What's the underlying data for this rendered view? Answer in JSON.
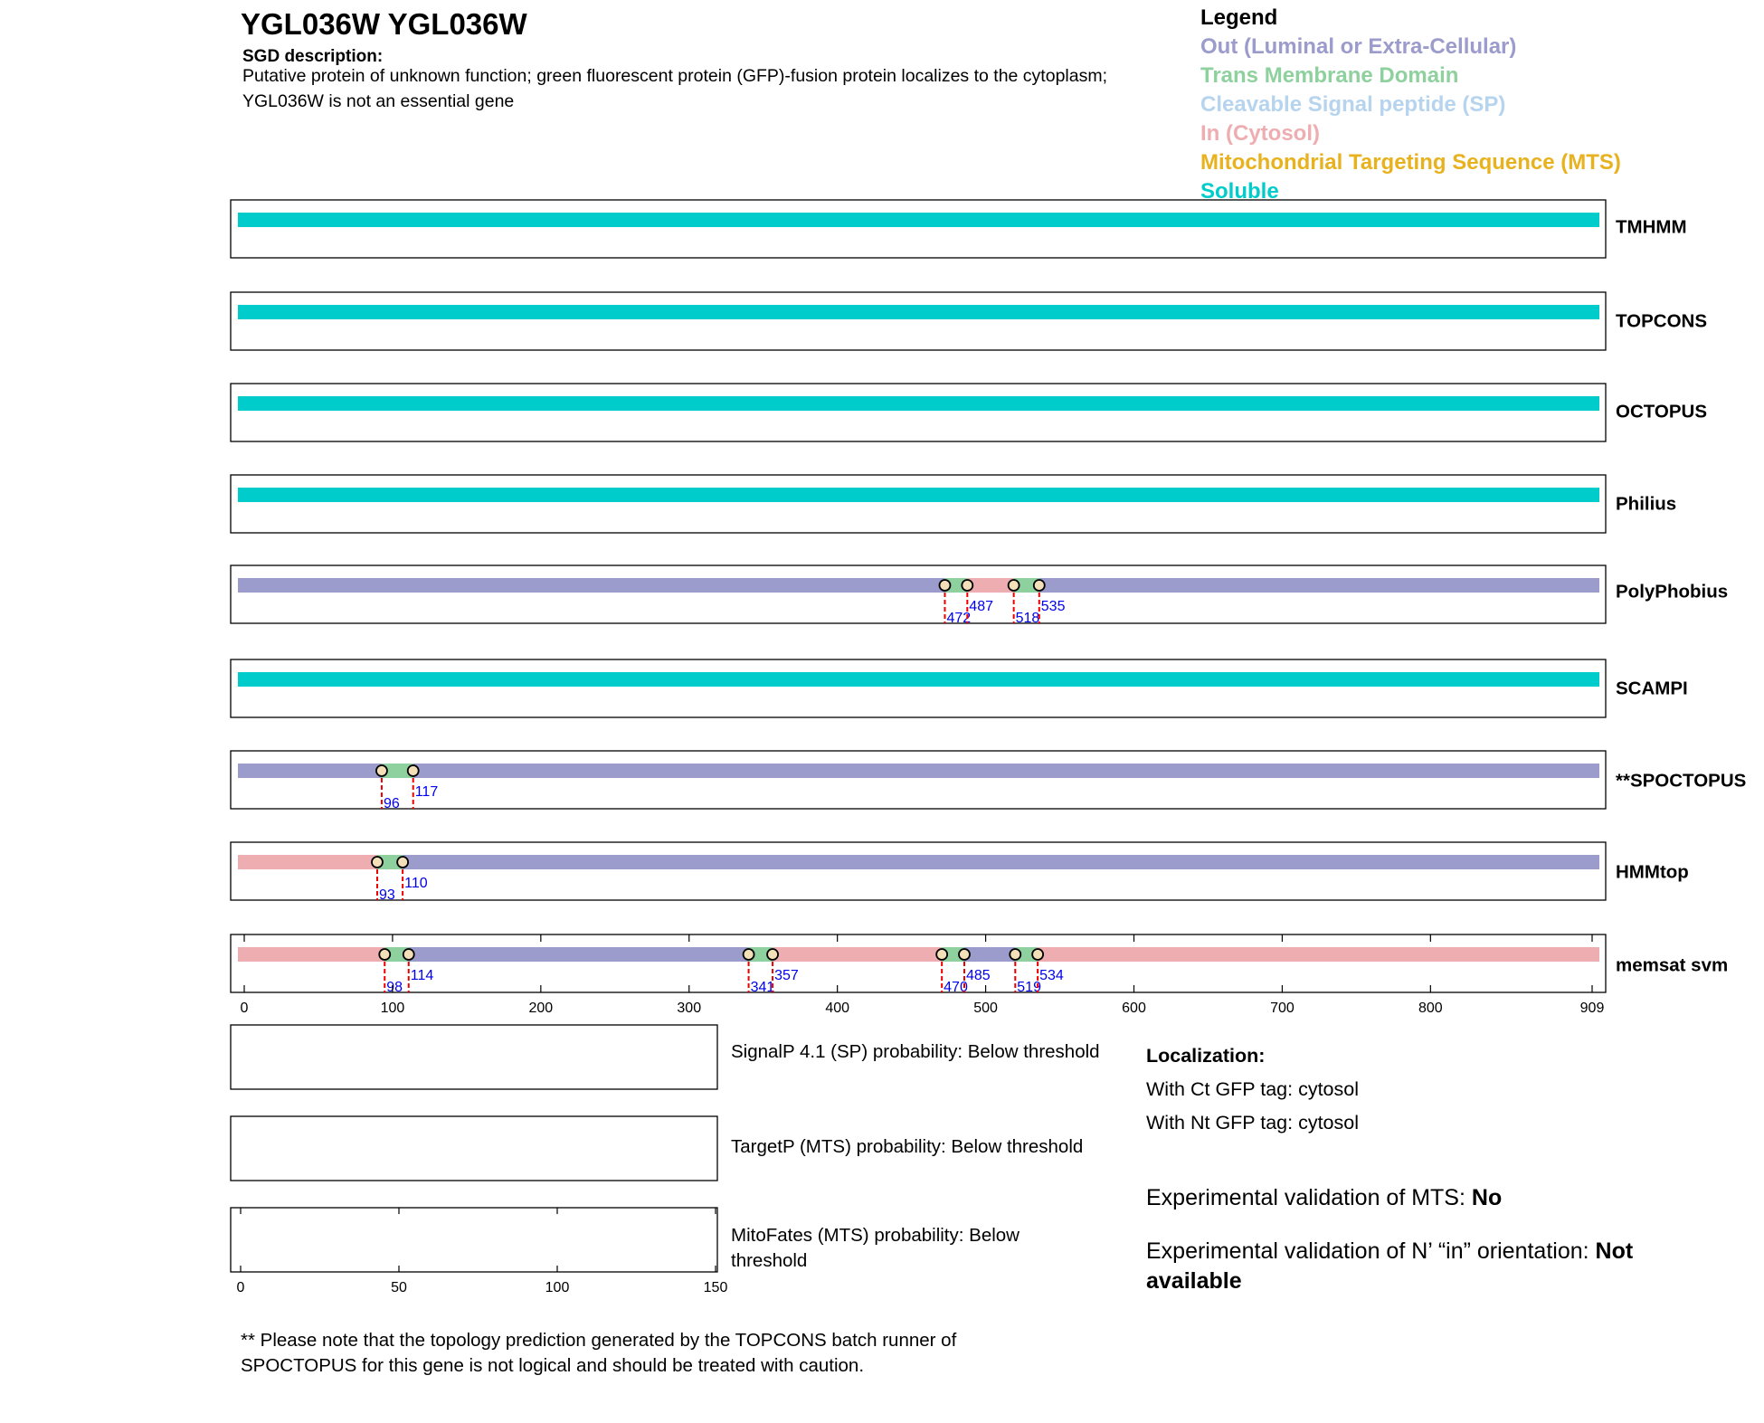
{
  "header": {
    "title": "YGL036W  YGL036W",
    "sgd_label": "SGD description:",
    "sgd_text": "Putative protein of unknown function; green fluorescent protein (GFP)-fusion protein localizes to the cytoplasm; YGL036W is not an essential gene"
  },
  "legend": {
    "title": "Legend",
    "items": [
      {
        "label": "Out (Luminal or Extra-Cellular)",
        "color": "#9b9bcc"
      },
      {
        "label": "Trans Membrane Domain",
        "color": "#8fd19e"
      },
      {
        "label": "Cleavable Signal peptide (SP)",
        "color": "#b7d4ee"
      },
      {
        "label": "In (Cytosol)",
        "color": "#eeaeb1"
      },
      {
        "label": "Mitochondrial Targeting Sequence (MTS)",
        "color": "#e8b21f"
      },
      {
        "label": "Soluble",
        "color": "#00cccc"
      }
    ]
  },
  "colors": {
    "out": "#9b9bcc",
    "tm": "#8fd19e",
    "sp": "#b7d4ee",
    "in": "#eeaeb1",
    "mts": "#e8b21f",
    "soluble": "#00cccc",
    "boundary_label": "#0000ee",
    "boundary_line": "#ee0000"
  },
  "chart_data": {
    "type": "topology",
    "sequence_length": 909,
    "xlim": [
      0,
      909
    ],
    "x_ticks": [
      "0",
      "100",
      "200",
      "300",
      "400",
      "500",
      "600",
      "700",
      "800",
      "909"
    ],
    "x_tick_values": [
      0,
      100,
      200,
      300,
      400,
      500,
      600,
      700,
      800,
      909
    ],
    "predictors": [
      {
        "name": "TMHMM",
        "segments": [
          {
            "start": 0,
            "end": 909,
            "type": "soluble"
          }
        ],
        "boundaries": []
      },
      {
        "name": "TOPCONS",
        "segments": [
          {
            "start": 0,
            "end": 909,
            "type": "soluble"
          }
        ],
        "boundaries": []
      },
      {
        "name": "OCTOPUS",
        "segments": [
          {
            "start": 0,
            "end": 909,
            "type": "soluble"
          }
        ],
        "boundaries": []
      },
      {
        "name": "Philius",
        "segments": [
          {
            "start": 0,
            "end": 909,
            "type": "soluble"
          }
        ],
        "boundaries": []
      },
      {
        "name": "PolyPhobius",
        "segments": [
          {
            "start": 0,
            "end": 472,
            "type": "out"
          },
          {
            "start": 472,
            "end": 487,
            "type": "tm"
          },
          {
            "start": 487,
            "end": 518,
            "type": "in"
          },
          {
            "start": 518,
            "end": 535,
            "type": "tm"
          },
          {
            "start": 535,
            "end": 909,
            "type": "out"
          }
        ],
        "boundaries": [
          {
            "pos": 472,
            "label": "472",
            "tier": "low"
          },
          {
            "pos": 487,
            "label": "487",
            "tier": "high"
          },
          {
            "pos": 518,
            "label": "518",
            "tier": "low"
          },
          {
            "pos": 535,
            "label": "535",
            "tier": "high"
          }
        ]
      },
      {
        "name": "SCAMPI",
        "segments": [
          {
            "start": 0,
            "end": 909,
            "type": "soluble"
          }
        ],
        "boundaries": []
      },
      {
        "name": "**SPOCTOPUS",
        "segments": [
          {
            "start": 0,
            "end": 96,
            "type": "out"
          },
          {
            "start": 96,
            "end": 117,
            "type": "tm"
          },
          {
            "start": 117,
            "end": 909,
            "type": "out"
          }
        ],
        "boundaries": [
          {
            "pos": 96,
            "label": "96",
            "tier": "low"
          },
          {
            "pos": 117,
            "label": "117",
            "tier": "high"
          }
        ]
      },
      {
        "name": "HMMtop",
        "segments": [
          {
            "start": 0,
            "end": 93,
            "type": "in"
          },
          {
            "start": 93,
            "end": 110,
            "type": "tm"
          },
          {
            "start": 110,
            "end": 909,
            "type": "out"
          }
        ],
        "boundaries": [
          {
            "pos": 93,
            "label": "93",
            "tier": "low"
          },
          {
            "pos": 110,
            "label": "110",
            "tier": "high"
          }
        ]
      },
      {
        "name": "memsat svm",
        "segments": [
          {
            "start": 0,
            "end": 98,
            "type": "in"
          },
          {
            "start": 98,
            "end": 114,
            "type": "tm"
          },
          {
            "start": 114,
            "end": 341,
            "type": "out"
          },
          {
            "start": 341,
            "end": 357,
            "type": "tm"
          },
          {
            "start": 357,
            "end": 470,
            "type": "in"
          },
          {
            "start": 470,
            "end": 485,
            "type": "tm"
          },
          {
            "start": 485,
            "end": 519,
            "type": "out"
          },
          {
            "start": 519,
            "end": 534,
            "type": "tm"
          },
          {
            "start": 534,
            "end": 909,
            "type": "in"
          }
        ],
        "boundaries": [
          {
            "pos": 98,
            "label": "98",
            "tier": "low"
          },
          {
            "pos": 114,
            "label": "114",
            "tier": "high"
          },
          {
            "pos": 341,
            "label": "341",
            "tier": "low"
          },
          {
            "pos": 357,
            "label": "357",
            "tier": "high"
          },
          {
            "pos": 470,
            "label": "470",
            "tier": "low"
          },
          {
            "pos": 485,
            "label": "485",
            "tier": "high"
          },
          {
            "pos": 519,
            "label": "519",
            "tier": "low"
          },
          {
            "pos": 534,
            "label": "534",
            "tier": "high"
          }
        ]
      }
    ],
    "probability_axis": {
      "xlim": [
        0,
        150
      ],
      "ticks": [
        "0",
        "50",
        "100",
        "150"
      ],
      "tick_values": [
        0,
        50,
        100,
        150
      ]
    }
  },
  "panels": {
    "signalp": "SignalP 4.1 (SP) probability: Below threshold",
    "targetp": "TargetP (MTS) probability: Below threshold",
    "mitofates": "MitoFates (MTS) probability: Below threshold"
  },
  "localization": {
    "title": "Localization:",
    "ct": "With Ct GFP tag: cytosol",
    "nt": "With Nt GFP tag: cytosol"
  },
  "experimental": {
    "mts_label": "Experimental validation of MTS: ",
    "mts_value": "No",
    "orient_label": "Experimental validation of N’ “in” orientation: ",
    "orient_value": "Not available"
  },
  "footnote": "** Please note that the topology prediction generated by the TOPCONS batch runner of SPOCTOPUS for this gene is not logical and should be treated with caution."
}
